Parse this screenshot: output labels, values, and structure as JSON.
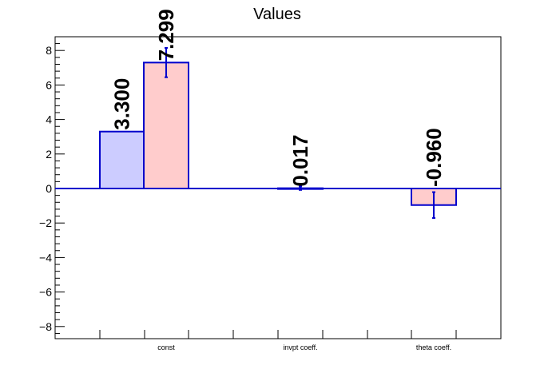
{
  "chart_data": {
    "type": "bar",
    "title": "Values",
    "xlabel": "",
    "ylabel": "",
    "categories": [
      "const",
      "invpt coeff.",
      "theta coeff."
    ],
    "ylim": [
      -8.8,
      8.8
    ],
    "yticks": [
      -8,
      -6,
      -4,
      -2,
      0,
      2,
      4,
      6,
      8
    ],
    "grid": false,
    "legend": "none",
    "series": [
      {
        "color": "#ccccff",
        "values": [
          3.3,
          null,
          null
        ],
        "labels": [
          "3.300",
          "",
          ""
        ],
        "errors": [
          0,
          null,
          null
        ]
      },
      {
        "color": "#ffcccc",
        "values": [
          7.299,
          0.017,
          -0.96
        ],
        "labels": [
          "7.299",
          "0.017",
          "-0.960"
        ],
        "errors": [
          0.85,
          0.1,
          0.75
        ]
      }
    ],
    "colors": {
      "axis": "#000000",
      "bar_edge": "#0000cc",
      "error_bar": "#0000cc"
    }
  }
}
